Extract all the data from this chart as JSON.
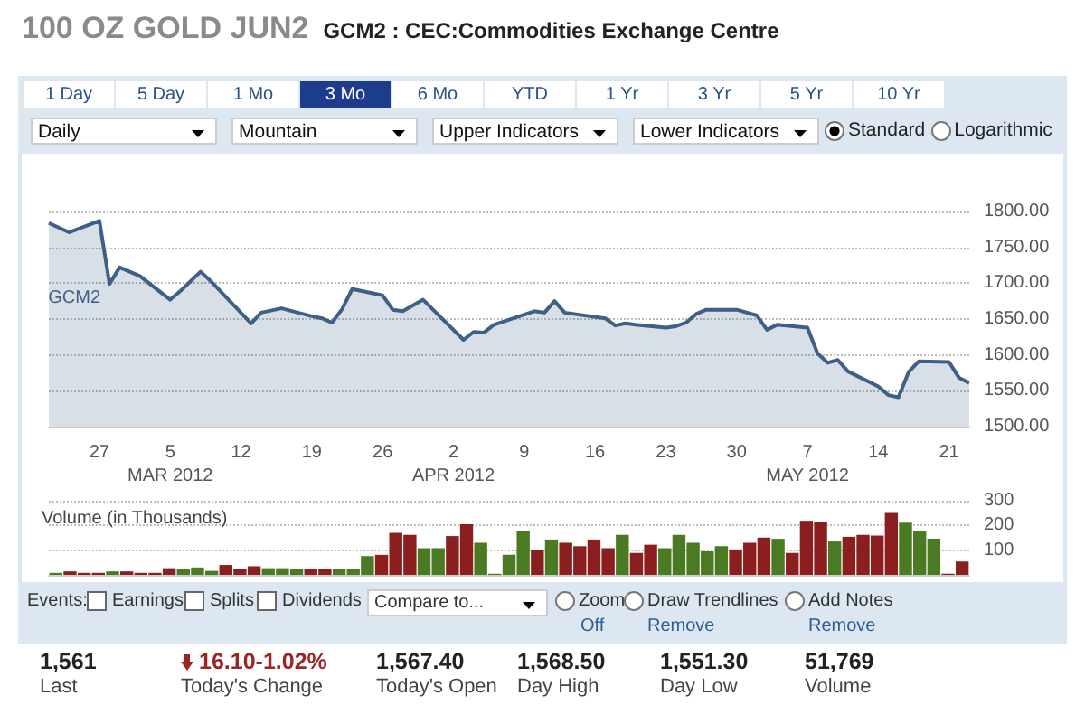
{
  "chart_data": [
    {
      "type": "other",
      "title": "100 OZ GOLD JUN2",
      "subtitle": "GCM2 : CEC:Commodities Exchange Centre",
      "annotations": [
        "1 Day",
        "5 Day",
        "1 Mo",
        "3 Mo",
        "6 Mo",
        "YTD",
        "1 Yr",
        "3 Yr",
        "5 Yr",
        "10 Yr",
        "Daily",
        "Mountain",
        "Upper Indicators",
        "Lower Indicators",
        "Standard",
        "Logarithmic"
      ]
    },
    {
      "type": "area",
      "x": [
        "2012-02-22",
        "2012-02-24",
        "2012-02-27",
        "2012-02-28",
        "2012-02-29",
        "2012-03-02",
        "2012-03-05",
        "2012-03-06",
        "2012-03-08",
        "2012-03-09",
        "2012-03-13",
        "2012-03-14",
        "2012-03-16",
        "2012-03-19",
        "2012-03-20",
        "2012-03-21",
        "2012-03-22",
        "2012-03-23",
        "2012-03-26",
        "2012-03-27",
        "2012-03-28",
        "2012-03-30",
        "2012-04-03",
        "2012-04-04",
        "2012-04-05",
        "2012-04-06",
        "2012-04-10",
        "2012-04-11",
        "2012-04-12",
        "2012-04-13",
        "2012-04-17",
        "2012-04-18",
        "2012-04-19",
        "2012-04-20",
        "2012-04-23",
        "2012-04-24",
        "2012-04-25",
        "2012-04-26",
        "2012-04-27",
        "2012-04-30",
        "2012-05-02",
        "2012-05-03",
        "2012-05-04",
        "2012-05-07",
        "2012-05-08",
        "2012-05-09",
        "2012-05-10",
        "2012-05-11",
        "2012-05-14",
        "2012-05-15",
        "2012-05-16",
        "2012-05-17",
        "2012-05-18",
        "2012-05-21",
        "2012-05-22",
        "2012-05-23"
      ],
      "series": [
        {
          "name": "GCM2",
          "color": "#3f5f87",
          "values": [
            1784,
            1771,
            1787,
            1699,
            1722,
            1710,
            1677,
            1689,
            1716,
            1703,
            1644,
            1659,
            1665,
            1654,
            1651,
            1645,
            1664,
            1692,
            1683,
            1663,
            1661,
            1677,
            1621,
            1632,
            1631,
            1642,
            1661,
            1659,
            1675,
            1659,
            1651,
            1641,
            1644,
            1642,
            1638,
            1640,
            1645,
            1657,
            1663,
            1663,
            1655,
            1635,
            1642,
            1638,
            1602,
            1589,
            1593,
            1577,
            1556,
            1544,
            1541,
            1576,
            1591,
            1590,
            1568,
            1561
          ]
        }
      ],
      "xlim": [
        "2012-02-22",
        "2012-05-23"
      ],
      "xticks": [
        {
          "value": "2012-02-27",
          "label": "27"
        },
        {
          "value": "2012-03-05",
          "label": "5\nMAR 2012"
        },
        {
          "value": "2012-03-12",
          "label": "12"
        },
        {
          "value": "2012-03-19",
          "label": "19"
        },
        {
          "value": "2012-03-26",
          "label": "26"
        },
        {
          "value": "2012-04-02",
          "label": "2\nAPR 2012"
        },
        {
          "value": "2012-04-09",
          "label": "9"
        },
        {
          "value": "2012-04-16",
          "label": "16"
        },
        {
          "value": "2012-04-23",
          "label": "23"
        },
        {
          "value": "2012-04-30",
          "label": "30"
        },
        {
          "value": "2012-05-07",
          "label": "7\nMAY 2012"
        },
        {
          "value": "2012-05-14",
          "label": "14"
        },
        {
          "value": "2012-05-21",
          "label": "21"
        }
      ],
      "ylim": [
        1500,
        1800
      ],
      "yticks": [
        {
          "value": 1500,
          "label": "1500.00"
        },
        {
          "value": 1550,
          "label": "1550.00"
        },
        {
          "value": 1600,
          "label": "1600.00"
        },
        {
          "value": 1650,
          "label": "1650.00"
        },
        {
          "value": 1700,
          "label": "1700.00"
        },
        {
          "value": 1750,
          "label": "1750.00"
        },
        {
          "value": 1800,
          "label": "1800.00"
        }
      ],
      "grid": "y",
      "marker": "none"
    },
    {
      "type": "bar",
      "title": "Volume (in Thousands)",
      "categories": [
        null,
        null,
        null,
        null,
        null,
        null,
        null,
        null,
        null,
        null,
        null,
        null,
        null,
        null,
        null,
        null,
        null,
        null,
        null,
        null,
        null,
        null,
        null,
        null,
        null,
        null,
        null,
        null,
        null,
        null,
        null,
        null,
        null,
        null,
        null,
        null,
        null,
        null,
        null,
        null,
        null,
        null,
        null,
        null,
        null,
        null,
        null,
        null,
        null,
        null,
        null,
        null,
        null,
        null,
        null,
        null,
        null,
        null,
        null,
        null,
        null,
        null,
        null,
        null,
        null
      ],
      "values": [
        8,
        14,
        8,
        8,
        14,
        14,
        8,
        8,
        27,
        22,
        30,
        16,
        40,
        22,
        35,
        27,
        27,
        22,
        22,
        22,
        22,
        22,
        76,
        81,
        170,
        162,
        108,
        108,
        157,
        205,
        130,
        5,
        81,
        178,
        100,
        143,
        130,
        116,
        143,
        108,
        162,
        89,
        122,
        108,
        162,
        130,
        95,
        116,
        103,
        130,
        151,
        146,
        89,
        219,
        214,
        135,
        154,
        162,
        159,
        251,
        211,
        178,
        146,
        5,
        54
      ],
      "colors": [
        "#4a7a22",
        "#8b1e1e",
        "#8b1e1e",
        "#8b1e1e",
        "#4a7a22",
        "#8b1e1e",
        "#8b1e1e",
        "#8b1e1e",
        "#8b1e1e",
        "#4a7a22",
        "#4a7a22",
        "#4a7a22",
        "#8b1e1e",
        "#8b1e1e",
        "#8b1e1e",
        "#4a7a22",
        "#4a7a22",
        "#4a7a22",
        "#8b1e1e",
        "#8b1e1e",
        "#4a7a22",
        "#4a7a22",
        "#4a7a22",
        "#8b1e1e",
        "#8b1e1e",
        "#8b1e1e",
        "#4a7a22",
        "#4a7a22",
        "#8b1e1e",
        "#8b1e1e",
        "#4a7a22",
        "#4a7a22",
        "#4a7a22",
        "#4a7a22",
        "#8b1e1e",
        "#4a7a22",
        "#8b1e1e",
        "#8b1e1e",
        "#8b1e1e",
        "#8b1e1e",
        "#4a7a22",
        "#8b1e1e",
        "#8b1e1e",
        "#4a7a22",
        "#4a7a22",
        "#4a7a22",
        "#4a7a22",
        "#4a7a22",
        "#8b1e1e",
        "#8b1e1e",
        "#8b1e1e",
        "#4a7a22",
        "#8b1e1e",
        "#8b1e1e",
        "#8b1e1e",
        "#4a7a22",
        "#8b1e1e",
        "#8b1e1e",
        "#8b1e1e",
        "#8b1e1e",
        "#4a7a22",
        "#4a7a22",
        "#4a7a22",
        "#8b1e1e",
        "#8b1e1e"
      ],
      "ylim": [
        0,
        300
      ],
      "yticks": [
        100,
        200,
        300
      ],
      "grid": "y",
      "tick_labels": "y"
    },
    {
      "type": "other",
      "annotations": [
        "Events:",
        "Earnings",
        "Splits",
        "Dividends",
        "Compare to...",
        "Zoom",
        "Off",
        "Draw Trendlines",
        "Remove",
        "Add Notes",
        "Remove"
      ]
    },
    {
      "type": "other",
      "annotations": [
        "1,561",
        "Last",
        "16.10-1.02%",
        "Today's Change",
        "1,567.40",
        "Today's Open",
        "1,568.50",
        "Day High",
        "1,551.30",
        "Day Low",
        "51,769",
        "Volume"
      ]
    }
  ]
}
